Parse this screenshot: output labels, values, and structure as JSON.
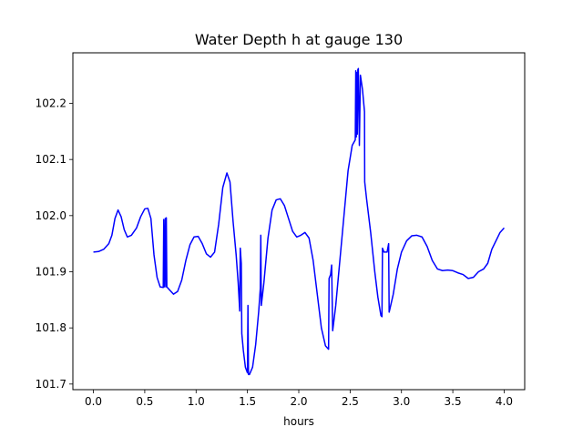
{
  "chart_data": {
    "type": "line",
    "title": "Water Depth h at gauge 130",
    "xlabel": "hours",
    "ylabel": "",
    "xlim": [
      -0.2,
      4.2
    ],
    "ylim": [
      101.69,
      102.29
    ],
    "xticks": [
      0.0,
      0.5,
      1.0,
      1.5,
      2.0,
      2.5,
      3.0,
      3.5,
      4.0
    ],
    "xtick_labels": [
      "0.0",
      "0.5",
      "1.0",
      "1.5",
      "2.0",
      "2.5",
      "3.0",
      "3.5",
      "4.0"
    ],
    "yticks": [
      101.7,
      101.8,
      101.9,
      102.0,
      102.1,
      102.2
    ],
    "ytick_labels": [
      "101.7",
      "101.8",
      "101.9",
      "102.0",
      "102.1",
      "102.2"
    ],
    "grid": false,
    "legend": "none",
    "colors": {
      "line": "#0000ff",
      "axes": "#000000",
      "background": "#ffffff"
    },
    "series": [
      {
        "points": [
          [
            0.0,
            101.935
          ],
          [
            0.05,
            101.936
          ],
          [
            0.1,
            101.94
          ],
          [
            0.15,
            101.95
          ],
          [
            0.18,
            101.965
          ],
          [
            0.21,
            101.995
          ],
          [
            0.24,
            102.01
          ],
          [
            0.27,
            101.998
          ],
          [
            0.3,
            101.975
          ],
          [
            0.33,
            101.962
          ],
          [
            0.37,
            101.965
          ],
          [
            0.42,
            101.978
          ],
          [
            0.46,
            101.998
          ],
          [
            0.5,
            102.012
          ],
          [
            0.53,
            102.013
          ],
          [
            0.56,
            101.995
          ],
          [
            0.59,
            101.93
          ],
          [
            0.62,
            101.89
          ],
          [
            0.65,
            101.873
          ],
          [
            0.68,
            101.872
          ],
          [
            0.685,
            101.993
          ],
          [
            0.69,
            101.873
          ],
          [
            0.7,
            101.995
          ],
          [
            0.705,
            101.873
          ],
          [
            0.71,
            101.996
          ],
          [
            0.715,
            101.873
          ],
          [
            0.74,
            101.868
          ],
          [
            0.78,
            101.86
          ],
          [
            0.82,
            101.865
          ],
          [
            0.86,
            101.885
          ],
          [
            0.9,
            101.92
          ],
          [
            0.94,
            101.948
          ],
          [
            0.98,
            101.962
          ],
          [
            1.02,
            101.963
          ],
          [
            1.06,
            101.95
          ],
          [
            1.1,
            101.932
          ],
          [
            1.14,
            101.926
          ],
          [
            1.18,
            101.935
          ],
          [
            1.22,
            101.985
          ],
          [
            1.26,
            102.05
          ],
          [
            1.3,
            102.076
          ],
          [
            1.33,
            102.06
          ],
          [
            1.36,
            101.99
          ],
          [
            1.39,
            101.93
          ],
          [
            1.41,
            101.88
          ],
          [
            1.425,
            101.83
          ],
          [
            1.43,
            101.942
          ],
          [
            1.44,
            101.915
          ],
          [
            1.445,
            101.79
          ],
          [
            1.46,
            101.76
          ],
          [
            1.48,
            101.73
          ],
          [
            1.5,
            101.72
          ],
          [
            1.505,
            101.84
          ],
          [
            1.51,
            101.717
          ],
          [
            1.52,
            101.717
          ],
          [
            1.55,
            101.73
          ],
          [
            1.58,
            101.77
          ],
          [
            1.61,
            101.83
          ],
          [
            1.625,
            101.87
          ],
          [
            1.63,
            101.965
          ],
          [
            1.635,
            101.84
          ],
          [
            1.66,
            101.88
          ],
          [
            1.7,
            101.96
          ],
          [
            1.74,
            102.01
          ],
          [
            1.78,
            102.028
          ],
          [
            1.82,
            102.03
          ],
          [
            1.86,
            102.018
          ],
          [
            1.9,
            101.995
          ],
          [
            1.94,
            101.972
          ],
          [
            1.98,
            101.962
          ],
          [
            2.02,
            101.965
          ],
          [
            2.06,
            101.97
          ],
          [
            2.1,
            101.96
          ],
          [
            2.14,
            101.92
          ],
          [
            2.18,
            101.86
          ],
          [
            2.22,
            101.8
          ],
          [
            2.26,
            101.768
          ],
          [
            2.29,
            101.762
          ],
          [
            2.295,
            101.888
          ],
          [
            2.31,
            101.895
          ],
          [
            2.32,
            101.912
          ],
          [
            2.33,
            101.795
          ],
          [
            2.36,
            101.84
          ],
          [
            2.4,
            101.92
          ],
          [
            2.44,
            102.0
          ],
          [
            2.48,
            102.08
          ],
          [
            2.52,
            102.125
          ],
          [
            2.55,
            102.135
          ],
          [
            2.555,
            102.258
          ],
          [
            2.56,
            102.14
          ],
          [
            2.565,
            102.255
          ],
          [
            2.57,
            102.145
          ],
          [
            2.575,
            102.26
          ],
          [
            2.58,
            102.262
          ],
          [
            2.59,
            102.125
          ],
          [
            2.6,
            102.25
          ],
          [
            2.62,
            102.225
          ],
          [
            2.64,
            102.185
          ],
          [
            2.642,
            102.06
          ],
          [
            2.66,
            102.03
          ],
          [
            2.7,
            101.97
          ],
          [
            2.74,
            101.9
          ],
          [
            2.77,
            101.855
          ],
          [
            2.8,
            101.822
          ],
          [
            2.81,
            101.82
          ],
          [
            2.815,
            101.942
          ],
          [
            2.83,
            101.935
          ],
          [
            2.86,
            101.935
          ],
          [
            2.875,
            101.95
          ],
          [
            2.88,
            101.828
          ],
          [
            2.92,
            101.86
          ],
          [
            2.96,
            101.905
          ],
          [
            3.0,
            101.935
          ],
          [
            3.05,
            101.955
          ],
          [
            3.1,
            101.964
          ],
          [
            3.15,
            101.965
          ],
          [
            3.2,
            101.962
          ],
          [
            3.25,
            101.945
          ],
          [
            3.3,
            101.92
          ],
          [
            3.35,
            101.905
          ],
          [
            3.4,
            101.902
          ],
          [
            3.45,
            101.903
          ],
          [
            3.5,
            101.902
          ],
          [
            3.55,
            101.898
          ],
          [
            3.6,
            101.895
          ],
          [
            3.65,
            101.888
          ],
          [
            3.7,
            101.89
          ],
          [
            3.75,
            101.9
          ],
          [
            3.8,
            101.905
          ],
          [
            3.84,
            101.915
          ],
          [
            3.88,
            101.94
          ],
          [
            3.92,
            101.955
          ],
          [
            3.96,
            101.97
          ],
          [
            4.0,
            101.978
          ]
        ]
      }
    ]
  }
}
